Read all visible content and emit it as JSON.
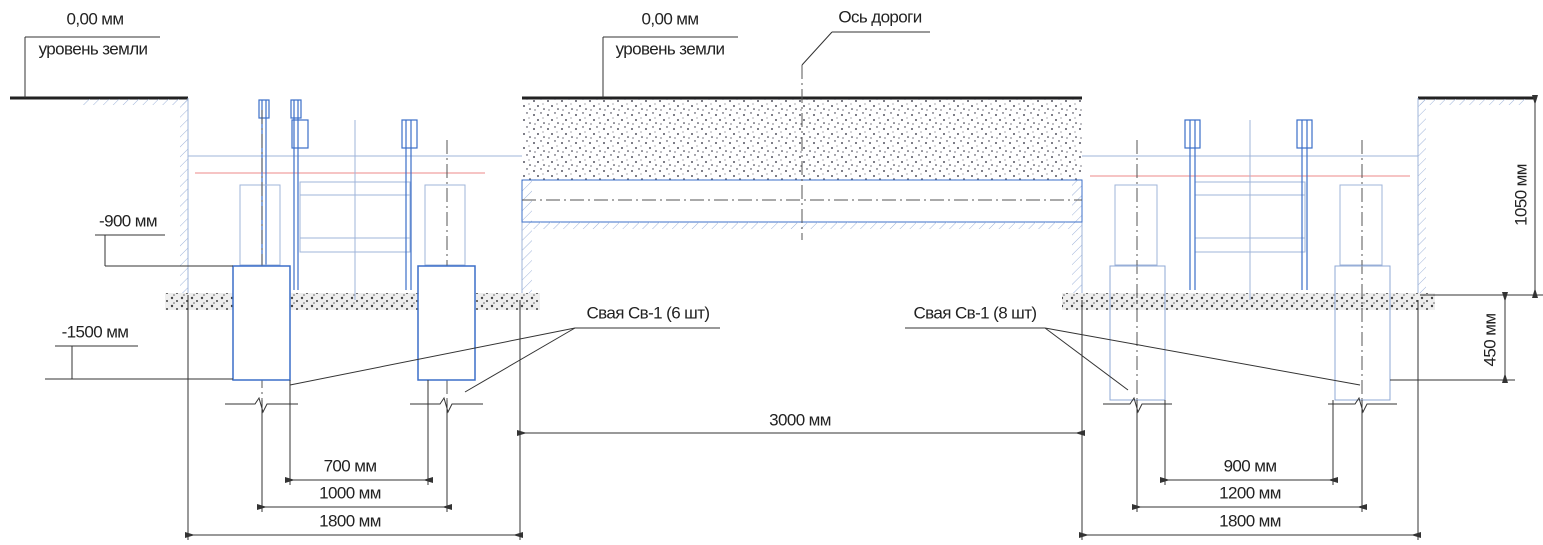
{
  "levels": [
    {
      "value": "0,00 мм",
      "label": "уровень земли"
    },
    {
      "value": "0,00 мм",
      "label": "уровень земли"
    }
  ],
  "axis_label": "Ось дороги",
  "depth_marks": [
    "-900 мм",
    "-1500 мм"
  ],
  "piles": [
    "Свая Св-1 (6 шт)",
    "Свая Св-1 (8 шт)"
  ],
  "road_width": "3000 мм",
  "left_dims": [
    "700 мм",
    "1000 мм",
    "1800 мм"
  ],
  "right_dims": [
    "900 мм",
    "1200 мм",
    "1800 мм"
  ],
  "vertical_dims": [
    "1050 мм",
    "450 мм"
  ]
}
